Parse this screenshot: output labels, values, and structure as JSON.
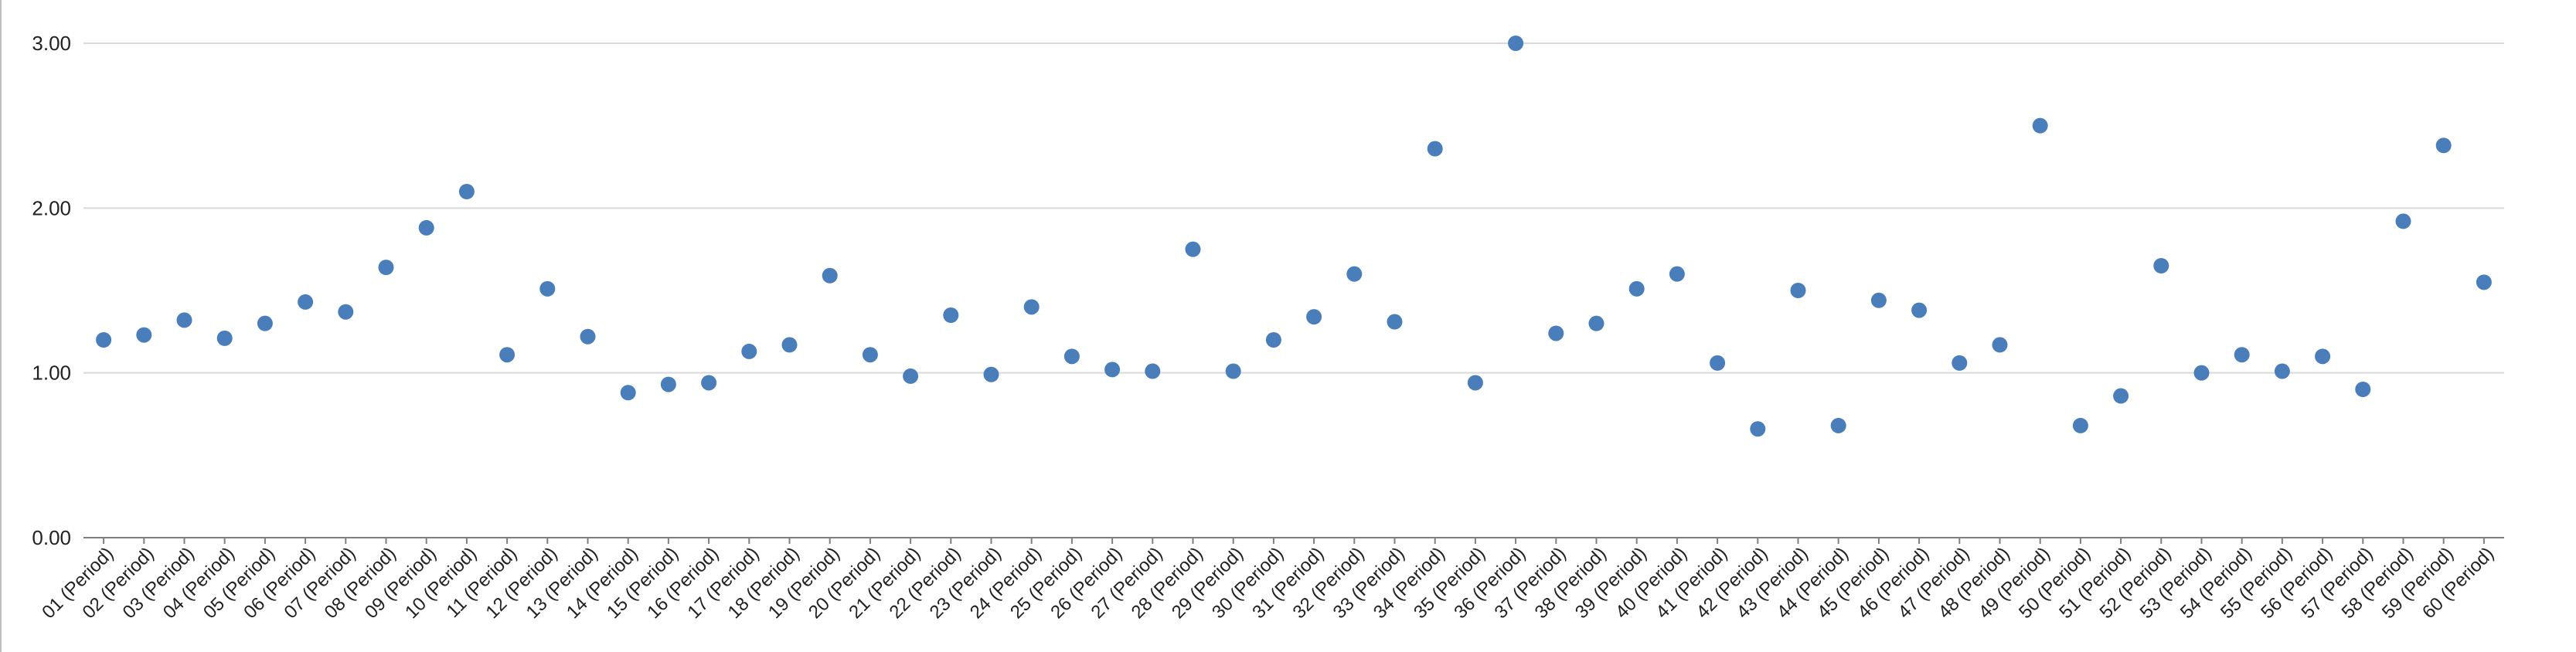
{
  "chart_data": {
    "type": "scatter",
    "title": "",
    "xlabel": "",
    "ylabel": "",
    "ylim": [
      0,
      3
    ],
    "yticks": [
      "0.00",
      "1.00",
      "2.00",
      "3.00"
    ],
    "grid": true,
    "legend": "none",
    "marker_color": "#4a7ebb",
    "categories": [
      "01 (Period)",
      "02 (Period)",
      "03 (Period)",
      "04 (Period)",
      "05 (Period)",
      "06 (Period)",
      "07 (Period)",
      "08 (Period)",
      "09 (Period)",
      "10 (Period)",
      "11 (Period)",
      "12 (Period)",
      "13 (Period)",
      "14 (Period)",
      "15 (Period)",
      "16 (Period)",
      "17 (Period)",
      "18 (Period)",
      "19 (Period)",
      "20 (Period)",
      "21 (Period)",
      "22 (Period)",
      "23 (Period)",
      "24 (Period)",
      "25 (Period)",
      "26 (Period)",
      "27 (Period)",
      "28 (Period)",
      "29 (Period)",
      "30 (Period)",
      "31 (Period)",
      "32 (Period)",
      "33 (Period)",
      "34 (Period)",
      "35 (Period)",
      "36 (Period)",
      "37 (Period)",
      "38 (Period)",
      "39 (Period)",
      "40 (Period)",
      "41 (Period)",
      "42 (Period)",
      "43 (Period)",
      "44 (Period)",
      "45 (Period)",
      "46 (Period)",
      "47 (Period)",
      "48 (Period)",
      "49 (Period)",
      "50 (Period)",
      "51 (Period)",
      "52 (Period)",
      "53 (Period)",
      "54 (Period)",
      "55 (Period)",
      "56 (Period)",
      "57 (Period)",
      "58 (Period)",
      "59 (Period)",
      "60 (Period)"
    ],
    "values": [
      1.2,
      1.23,
      1.32,
      1.21,
      1.3,
      1.43,
      1.37,
      1.64,
      1.88,
      2.1,
      1.11,
      1.51,
      1.22,
      0.88,
      0.93,
      0.94,
      1.13,
      1.17,
      1.59,
      1.11,
      0.98,
      1.35,
      0.99,
      1.4,
      1.1,
      1.02,
      1.01,
      1.75,
      1.01,
      1.2,
      1.34,
      1.6,
      1.31,
      2.36,
      0.94,
      3.0,
      1.24,
      1.3,
      1.51,
      1.6,
      1.06,
      0.66,
      1.5,
      0.68,
      1.44,
      1.38,
      1.06,
      1.17,
      2.5,
      0.68,
      0.86,
      1.65,
      1.0,
      1.11,
      1.01,
      1.1,
      0.9,
      1.92,
      2.38,
      1.55
    ]
  }
}
